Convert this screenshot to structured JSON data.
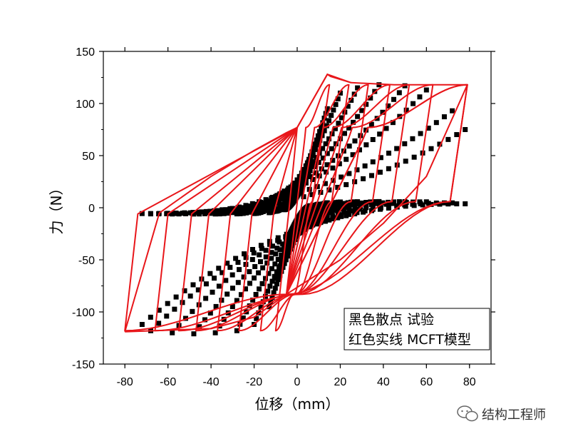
{
  "chart_data": {
    "type": "line",
    "title": "",
    "xlabel": "位移（mm）",
    "ylabel": "力（N）",
    "xlim": [
      -90,
      90
    ],
    "ylim": [
      -150,
      150
    ],
    "x_ticks": [
      -80,
      -60,
      -40,
      -20,
      0,
      20,
      40,
      60,
      80
    ],
    "y_ticks": [
      -150,
      -100,
      -50,
      0,
      50,
      100,
      150
    ],
    "grid": false,
    "legend_position": "bottom-right",
    "legend": [
      "黑色散点  试验",
      "红色实线  MCFT模型"
    ],
    "series": [
      {
        "name": "黑色散点  试验",
        "color": "#000000",
        "marker": "square",
        "loops": [
          {
            "amp_pos": 6,
            "amp_neg": -6,
            "peak_pos": 38,
            "peak_neg": -38
          },
          {
            "amp_pos": 10,
            "amp_neg": -10,
            "peak_pos": 68,
            "peak_neg": -68
          },
          {
            "amp_pos": 14,
            "amp_neg": -13,
            "peak_pos": 95,
            "peak_neg": -95
          },
          {
            "amp_pos": 20,
            "amp_neg": -20,
            "peak_pos": 110,
            "peak_neg": -112
          },
          {
            "amp_pos": 28,
            "amp_neg": -28,
            "peak_pos": 115,
            "peak_neg": -118
          },
          {
            "amp_pos": 38,
            "amp_neg": -38,
            "peak_pos": 118,
            "peak_neg": -120
          },
          {
            "amp_pos": 50,
            "amp_neg": -48,
            "peak_pos": 117,
            "peak_neg": -121
          },
          {
            "amp_pos": 60,
            "amp_neg": -58,
            "peak_pos": 113,
            "peak_neg": -120
          },
          {
            "amp_pos": 72,
            "amp_neg": -68,
            "peak_pos": 93,
            "peak_neg": -118
          },
          {
            "amp_pos": 78,
            "amp_neg": -72,
            "peak_pos": 75,
            "peak_neg": -112
          }
        ]
      },
      {
        "name": "红色实线  MCFT模型",
        "color": "#e8161a",
        "marker": "none",
        "pinch_pos": [
          0,
          77
        ],
        "pinch_neg": [
          -5,
          -83
        ],
        "cycles": [
          {
            "x_max": 15,
            "x_min": -10
          },
          {
            "x_max": 24,
            "x_min": -17
          },
          {
            "x_max": 33,
            "x_min": -27
          },
          {
            "x_max": 43,
            "x_min": -37
          },
          {
            "x_max": 52,
            "x_min": -47
          },
          {
            "x_max": 63,
            "x_min": -55
          },
          {
            "x_max": 79,
            "x_min": -66
          },
          {
            "x_max": 79,
            "x_min": -80
          }
        ],
        "peak_force_pos": 118,
        "peak_force_neg": -118,
        "overshoot_peak": [
          14,
          128
        ],
        "envelope_points": [
          [
            -80,
            -119
          ],
          [
            -64,
            -5
          ],
          [
            -40,
            30
          ],
          [
            -20,
            55
          ],
          [
            -5,
            72
          ],
          [
            0,
            77
          ],
          [
            14,
            128
          ],
          [
            25,
            120
          ],
          [
            45,
            118
          ],
          [
            79,
            118
          ],
          [
            60,
            30
          ],
          [
            40,
            -15
          ],
          [
            20,
            -50
          ],
          [
            -5,
            -83
          ],
          [
            -20,
            -105
          ],
          [
            -40,
            -116
          ],
          [
            -80,
            -119
          ]
        ]
      }
    ]
  },
  "watermark": {
    "text": "结构工程师",
    "icon": "wechat-icon"
  }
}
